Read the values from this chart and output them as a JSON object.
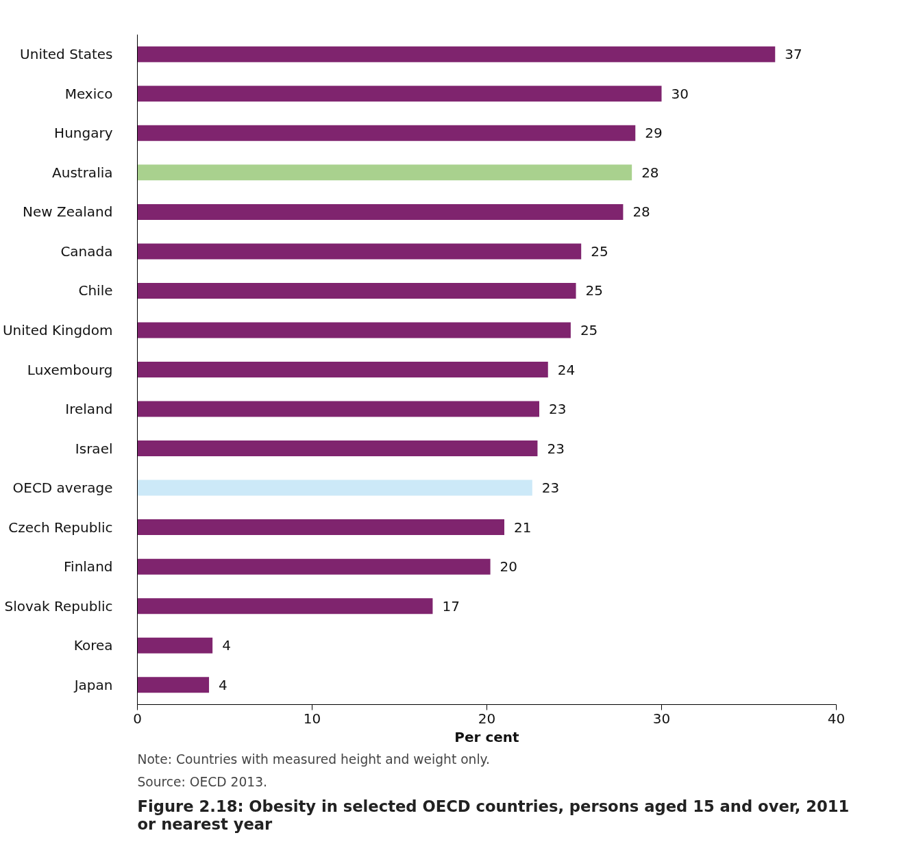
{
  "chart_data": {
    "type": "bar",
    "orientation": "horizontal",
    "title": "Figure 2.18: Obesity in selected OECD countries, persons aged 15 and over, 2011 or nearest year",
    "xlabel": "Per cent",
    "annotations": [
      "Note: Countries with measured height and weight only.",
      "Source: OECD 2013."
    ],
    "categories": [
      "United States",
      "Mexico",
      "Hungary",
      "Australia",
      "New Zealand",
      "Canada",
      "Chile",
      "United Kingdom",
      "Luxembourg",
      "Ireland",
      "Israel",
      "OECD average",
      "Czech Republic",
      "Finland",
      "Slovak Republic",
      "Korea",
      "Japan"
    ],
    "values": [
      36.5,
      30.0,
      28.5,
      28.3,
      27.8,
      25.4,
      25.1,
      24.8,
      23.5,
      23.0,
      22.9,
      22.6,
      21.0,
      20.2,
      16.9,
      4.3,
      4.1
    ],
    "value_labels": [
      "37",
      "30",
      "29",
      "28",
      "28",
      "25",
      "25",
      "25",
      "24",
      "23",
      "23",
      "23",
      "21",
      "20",
      "17",
      "4",
      "4"
    ],
    "colors": [
      "#7f246e",
      "#7f246e",
      "#7f246e",
      "#a9d18e",
      "#7f246e",
      "#7f246e",
      "#7f246e",
      "#7f246e",
      "#7f246e",
      "#7f246e",
      "#7f246e",
      "#cce9f8",
      "#7f246e",
      "#7f246e",
      "#7f246e",
      "#7f246e",
      "#7f246e"
    ],
    "xlim": [
      0,
      40
    ],
    "xticks": [
      0,
      10,
      20,
      30,
      40
    ],
    "grid": false
  }
}
